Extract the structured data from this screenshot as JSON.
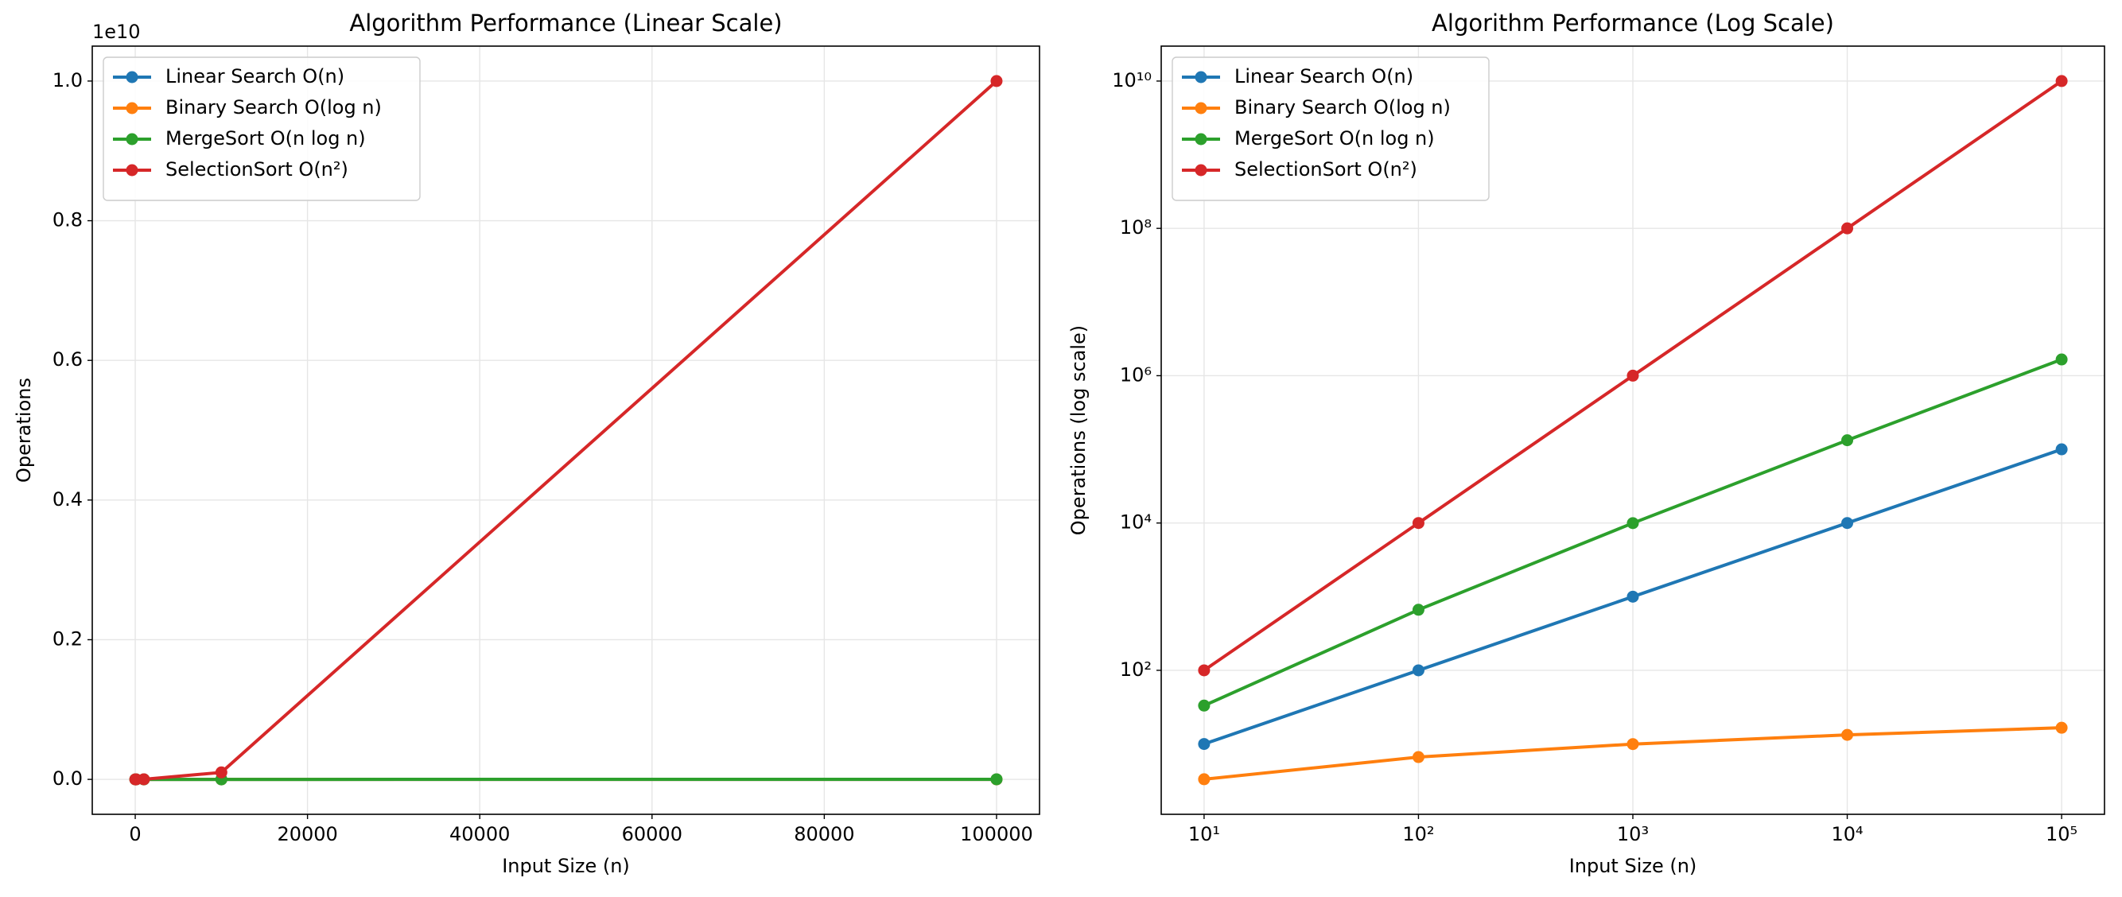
{
  "chart_data": [
    {
      "type": "line",
      "title": "Algorithm Performance (Linear Scale)",
      "x_label": "Input Size (n)",
      "y_label": "Operations",
      "y_offset_label": "1e10",
      "x": [
        10,
        100,
        1000,
        10000,
        100000
      ],
      "xlim": [
        -4990,
        104990
      ],
      "xticks": [
        0,
        20000,
        40000,
        60000,
        80000,
        100000
      ],
      "ylim": [
        -500000000,
        10500000000
      ],
      "yticks": [
        {
          "value": 0,
          "label": "0.0"
        },
        {
          "value": 2000000000,
          "label": "0.2"
        },
        {
          "value": 4000000000,
          "label": "0.4"
        },
        {
          "value": 6000000000,
          "label": "0.6"
        },
        {
          "value": 8000000000,
          "label": "0.8"
        },
        {
          "value": 10000000000,
          "label": "1.0"
        }
      ],
      "grid": true,
      "legend": "upper left",
      "series": [
        {
          "name": "Linear Search O(n)",
          "color": "#1f77b4",
          "values": [
            10,
            100,
            1000,
            10000,
            100000
          ]
        },
        {
          "name": "Binary Search O(log n)",
          "color": "#ff7f0e",
          "values": [
            3.32,
            6.64,
            9.97,
            13.29,
            16.61
          ]
        },
        {
          "name": "MergeSort O(n log n)",
          "color": "#2ca02c",
          "values": [
            33.2,
            664,
            9966,
            132877,
            1660964
          ]
        },
        {
          "name": "SelectionSort O(n²)",
          "color": "#d62728",
          "values": [
            100,
            10000,
            1000000,
            100000000,
            10000000000
          ]
        }
      ]
    },
    {
      "type": "line",
      "title": "Algorithm Performance (Log Scale)",
      "x_label": "Input Size (n)",
      "y_label": "Operations (log scale)",
      "x": [
        10,
        100,
        1000,
        10000,
        100000
      ],
      "xscale": "log",
      "yscale": "log",
      "xlim": [
        6.31,
        158489
      ],
      "xticks": [
        {
          "value": 10,
          "label": "10¹"
        },
        {
          "value": 100,
          "label": "10²"
        },
        {
          "value": 1000,
          "label": "10³"
        },
        {
          "value": 10000,
          "label": "10⁴"
        },
        {
          "value": 100000,
          "label": "10⁵"
        }
      ],
      "ylim": [
        1.11,
        29800000000
      ],
      "yticks": [
        {
          "value": 100,
          "label": "10²"
        },
        {
          "value": 10000,
          "label": "10⁴"
        },
        {
          "value": 1000000,
          "label": "10⁶"
        },
        {
          "value": 100000000,
          "label": "10⁸"
        },
        {
          "value": 10000000000,
          "label": "10¹⁰"
        }
      ],
      "grid": true,
      "legend": "upper left",
      "series": [
        {
          "name": "Linear Search O(n)",
          "color": "#1f77b4",
          "values": [
            10,
            100,
            1000,
            10000,
            100000
          ]
        },
        {
          "name": "Binary Search O(log n)",
          "color": "#ff7f0e",
          "values": [
            3.32,
            6.64,
            9.97,
            13.29,
            16.61
          ]
        },
        {
          "name": "MergeSort O(n log n)",
          "color": "#2ca02c",
          "values": [
            33.2,
            664,
            9966,
            132877,
            1660964
          ]
        },
        {
          "name": "SelectionSort O(n²)",
          "color": "#d62728",
          "values": [
            100,
            10000,
            1000000,
            100000000,
            10000000000
          ]
        }
      ]
    }
  ]
}
